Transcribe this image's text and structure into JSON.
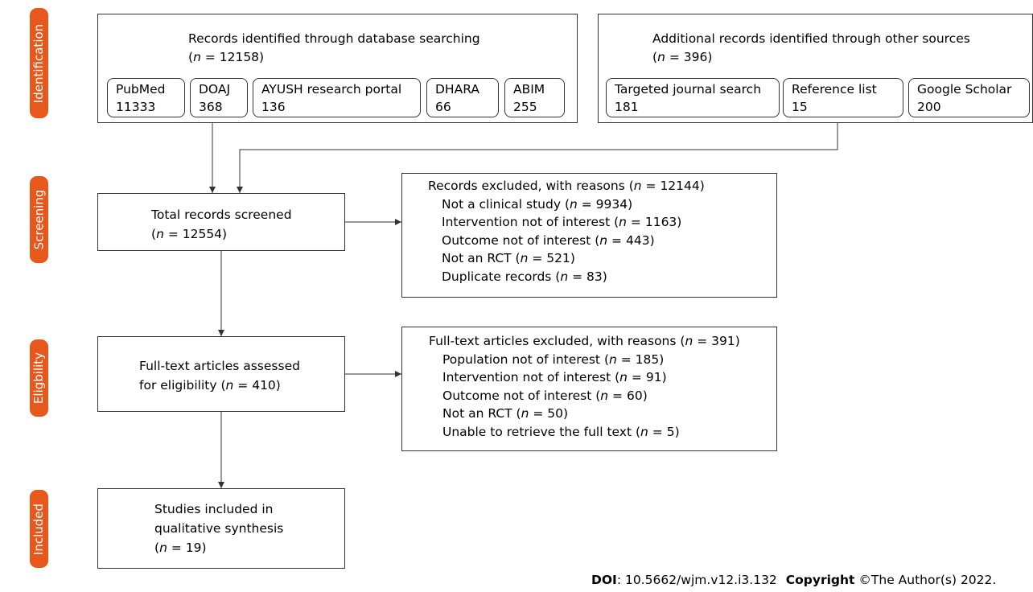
{
  "stages": {
    "identification": "Identification",
    "screening": "Screening",
    "eligibility": "Eligbility",
    "included": "Included"
  },
  "database_search": {
    "title": "Records identified through database searching",
    "count": "12158",
    "sources": [
      {
        "name": "PubMed",
        "count": "11333"
      },
      {
        "name": "DOAJ",
        "count": "368"
      },
      {
        "name": "AYUSH research portal",
        "count": "136"
      },
      {
        "name": "DHARA",
        "count": "66"
      },
      {
        "name": "ABIM",
        "count": "255"
      }
    ]
  },
  "other_sources": {
    "title": "Additional records identified through other sources",
    "count": "396",
    "sources": [
      {
        "name": "Targeted journal search",
        "count": "181"
      },
      {
        "name": "Reference list",
        "count": "15"
      },
      {
        "name": "Google Scholar",
        "count": "200"
      }
    ]
  },
  "screened": {
    "title": "Total records screened",
    "count": "12554"
  },
  "excluded_records": {
    "title": "Records excluded, with reasons",
    "count": "12144",
    "reasons": [
      {
        "label": "Not a clinical study",
        "count": "9934"
      },
      {
        "label": "Intervention not of interest",
        "count": "1163"
      },
      {
        "label": "Outcome not of interest",
        "count": "443"
      },
      {
        "label": "Not an RCT",
        "count": "521"
      },
      {
        "label": "Duplicate records",
        "count": "83"
      }
    ]
  },
  "eligibility": {
    "line1": "Full-text articles assessed",
    "line2": "for eligibility",
    "count": "410"
  },
  "excluded_fulltext": {
    "title": "Full-text articles excluded, with reasons",
    "count": "391",
    "reasons": [
      {
        "label": "Population not of interest",
        "count": "185"
      },
      {
        "label": "Intervention not of interest",
        "count": "91"
      },
      {
        "label": "Outcome not of interest",
        "count": "60"
      },
      {
        "label": "Not an RCT",
        "count": "50"
      },
      {
        "label": "Unable to retrieve the full text",
        "count": "5"
      }
    ]
  },
  "included": {
    "line1": "Studies included in",
    "line2": "qualitative synthesis",
    "count": "19"
  },
  "footer": {
    "doi_label": "DOI",
    "doi_value": ": 10.5662/wjm.v12.i3.132",
    "copyright_label": "Copyright",
    "copyright_value": "©The Author(s) 2022."
  }
}
